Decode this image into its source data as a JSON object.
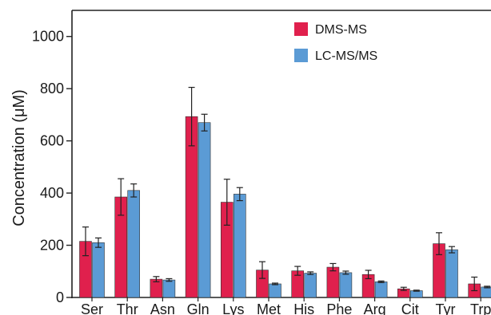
{
  "chart_data": {
    "type": "bar",
    "categories": [
      "Ser",
      "Thr",
      "Asn",
      "Gln",
      "Lys",
      "Met",
      "His",
      "Phe",
      "Arg",
      "Cit",
      "Tyr",
      "Trp"
    ],
    "series": [
      {
        "name": "DMS-MS",
        "color": "#e0204d",
        "values": [
          215,
          385,
          70,
          693,
          365,
          105,
          102,
          116,
          88,
          33,
          206,
          52
        ],
        "errors": [
          55,
          70,
          10,
          112,
          88,
          32,
          17,
          14,
          16,
          6,
          42,
          26
        ]
      },
      {
        "name": "LC-MS/MS",
        "color": "#5b9bd5",
        "values": [
          210,
          410,
          67,
          670,
          396,
          52,
          93,
          95,
          60,
          26,
          183,
          40
        ],
        "errors": [
          18,
          25,
          5,
          32,
          25,
          3,
          5,
          6,
          3,
          2,
          12,
          3
        ]
      }
    ],
    "ylabel": "Concentration (μM)",
    "xlabel": "",
    "ylim": [
      0,
      1100
    ],
    "yticks": [
      0,
      200,
      400,
      600,
      800,
      1000
    ],
    "grid": false,
    "legend_position": "top-center"
  }
}
